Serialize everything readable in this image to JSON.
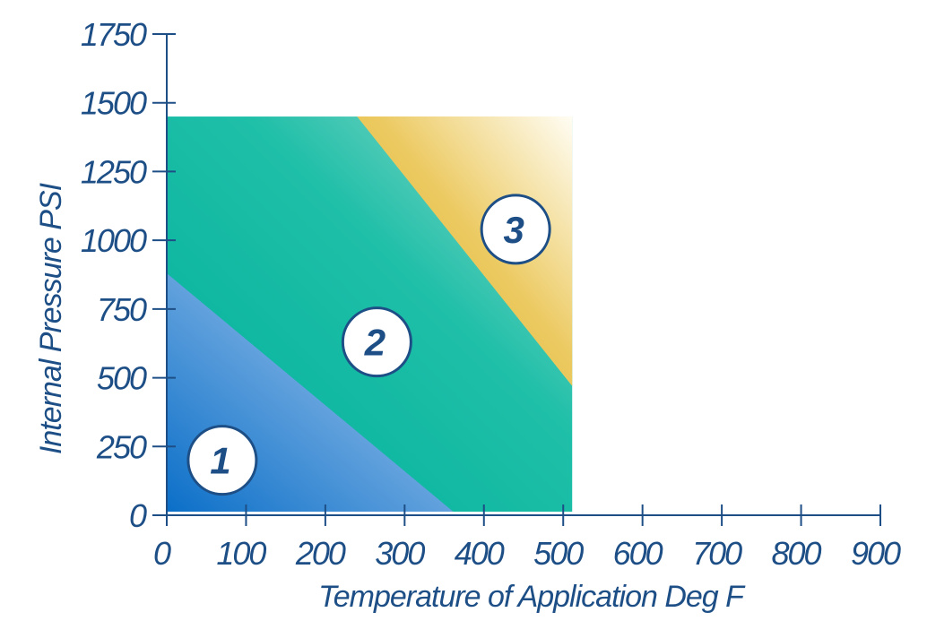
{
  "chart_data": {
    "type": "area",
    "xlabel": "Temperature of Application Deg F",
    "ylabel": "Internal Pressure PSI",
    "xlim": [
      0,
      900
    ],
    "ylim": [
      0,
      1750
    ],
    "x_ticks": [
      0,
      100,
      200,
      300,
      400,
      500,
      600,
      700,
      800,
      900
    ],
    "y_ticks": [
      0,
      250,
      500,
      750,
      1000,
      1250,
      1500,
      1750
    ],
    "x_tick_labels": [
      "0",
      "100",
      "200",
      "300",
      "400",
      "500",
      "600",
      "700",
      "800",
      "900"
    ],
    "y_tick_labels": [
      "0",
      "250",
      "500",
      "750",
      "1000",
      "1250",
      "1500",
      "1750"
    ],
    "plot_region": {
      "x": [
        0,
        500
      ],
      "y": [
        0,
        1450
      ]
    },
    "zones": [
      {
        "label": "1",
        "color": "#1a7fd0",
        "boundary": [
          [
            0,
            880
          ],
          [
            350,
            0
          ]
        ],
        "label_at": [
          70,
          200
        ]
      },
      {
        "label": "2",
        "color": "#12b59c",
        "boundary": [
          [
            240,
            1450
          ],
          [
            500,
            470
          ]
        ],
        "label_at": [
          265,
          630
        ]
      },
      {
        "label": "3",
        "color": "#e5bd30",
        "label_at": [
          440,
          1040
        ]
      }
    ],
    "axis_color": "#1d4f86",
    "grid": false,
    "legend": "none"
  }
}
